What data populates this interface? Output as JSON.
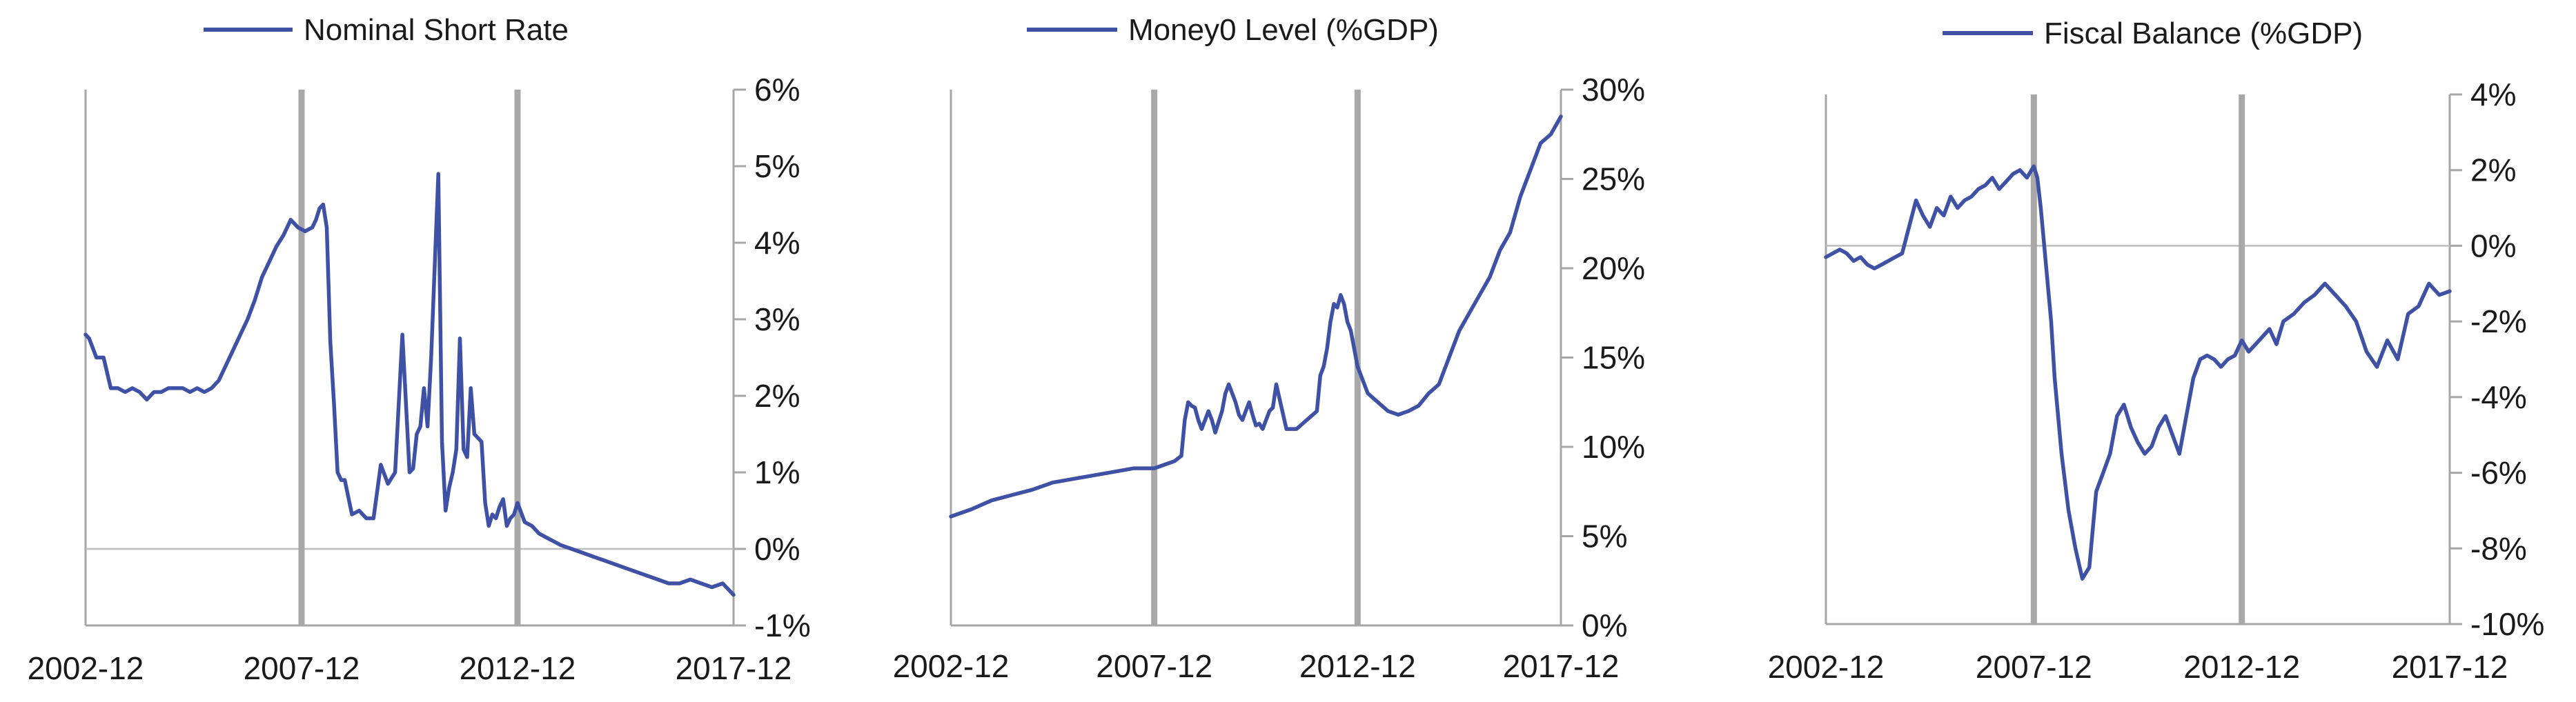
{
  "chart_data": [
    {
      "type": "line",
      "title": "",
      "xlabel": "",
      "ylabel": "",
      "legend_position": "top",
      "x_tick_labels": [
        "2002-12",
        "2007-12",
        "2012-12",
        "2017-12"
      ],
      "y_tick_labels": [
        "6%",
        "5%",
        "4%",
        "3%",
        "2%",
        "1%",
        "0%",
        "-1%"
      ],
      "ylim": [
        -1,
        6
      ],
      "xlim": [
        "2002-12",
        "2017-12"
      ],
      "y_axis_side": "right",
      "vertical_markers": [
        "2007-12",
        "2012-12"
      ],
      "series": [
        {
          "name": "Nominal Short Rate",
          "color": "#3f51a5",
          "x": [
            "2002-12",
            "2003-01",
            "2003-03",
            "2003-05",
            "2003-07",
            "2003-09",
            "2003-11",
            "2004-01",
            "2004-03",
            "2004-05",
            "2004-07",
            "2004-09",
            "2004-11",
            "2005-01",
            "2005-03",
            "2005-05",
            "2005-07",
            "2005-09",
            "2005-11",
            "2006-01",
            "2006-03",
            "2006-05",
            "2006-07",
            "2006-09",
            "2006-11",
            "2007-01",
            "2007-03",
            "2007-05",
            "2007-07",
            "2007-09",
            "2007-11",
            "2008-01",
            "2008-03",
            "2008-04",
            "2008-05",
            "2008-06",
            "2008-07",
            "2008-08",
            "2008-09",
            "2008-10",
            "2008-11",
            "2008-12",
            "2009-02",
            "2009-04",
            "2009-06",
            "2009-08",
            "2009-10",
            "2009-12",
            "2010-02",
            "2010-04",
            "2010-06",
            "2010-07",
            "2010-08",
            "2010-09",
            "2010-10",
            "2010-11",
            "2010-12",
            "2011-02",
            "2011-03",
            "2011-04",
            "2011-05",
            "2011-06",
            "2011-07",
            "2011-08",
            "2011-09",
            "2011-10",
            "2011-11",
            "2011-12",
            "2012-01",
            "2012-02",
            "2012-03",
            "2012-04",
            "2012-05",
            "2012-06",
            "2012-07",
            "2012-08",
            "2012-09",
            "2012-10",
            "2012-11",
            "2012-12",
            "2013-02",
            "2013-04",
            "2013-06",
            "2013-08",
            "2013-10",
            "2013-12",
            "2014-03",
            "2014-06",
            "2014-09",
            "2014-12",
            "2015-03",
            "2015-06",
            "2015-09",
            "2015-12",
            "2016-03",
            "2016-06",
            "2016-09",
            "2016-12",
            "2017-03",
            "2017-06",
            "2017-09",
            "2017-12"
          ],
          "y": [
            2.8,
            2.75,
            2.5,
            2.5,
            2.1,
            2.1,
            2.05,
            2.1,
            2.05,
            1.95,
            2.05,
            2.05,
            2.1,
            2.1,
            2.1,
            2.05,
            2.1,
            2.05,
            2.1,
            2.2,
            2.4,
            2.6,
            2.8,
            3.0,
            3.25,
            3.55,
            3.75,
            3.95,
            4.1,
            4.3,
            4.2,
            4.15,
            4.2,
            4.3,
            4.45,
            4.5,
            4.2,
            2.7,
            1.9,
            1.0,
            0.9,
            0.9,
            0.45,
            0.5,
            0.4,
            0.4,
            1.1,
            0.85,
            1.0,
            2.8,
            1.0,
            1.05,
            1.5,
            1.6,
            2.1,
            1.6,
            2.5,
            4.9,
            1.4,
            0.5,
            0.8,
            1.0,
            1.3,
            2.75,
            1.3,
            1.2,
            2.1,
            1.5,
            1.45,
            1.4,
            0.6,
            0.3,
            0.45,
            0.4,
            0.55,
            0.65,
            0.3,
            0.4,
            0.45,
            0.6,
            0.35,
            0.3,
            0.2,
            0.15,
            0.1,
            0.05,
            0.0,
            -0.05,
            -0.1,
            -0.15,
            -0.2,
            -0.25,
            -0.3,
            -0.35,
            -0.4,
            -0.45,
            -0.45,
            -0.4,
            -0.45,
            -0.5,
            -0.45,
            -0.6
          ]
        }
      ]
    },
    {
      "type": "line",
      "title": "",
      "xlabel": "",
      "ylabel": "",
      "legend_position": "top",
      "x_tick_labels": [
        "2002-12",
        "2007-12",
        "2012-12",
        "2017-12"
      ],
      "y_tick_labels": [
        "30%",
        "25%",
        "20%",
        "15%",
        "10%",
        "5%",
        "0%"
      ],
      "ylim": [
        0,
        30
      ],
      "xlim": [
        "2002-12",
        "2017-12"
      ],
      "y_axis_side": "right",
      "vertical_markers": [
        "2007-12",
        "2012-12"
      ],
      "series": [
        {
          "name": "Money0 Level (%GDP)",
          "color": "#3f51a5",
          "x": [
            "2002-12",
            "2003-06",
            "2003-12",
            "2004-06",
            "2004-12",
            "2005-06",
            "2005-12",
            "2006-06",
            "2006-12",
            "2007-06",
            "2007-12",
            "2008-03",
            "2008-06",
            "2008-08",
            "2008-09",
            "2008-10",
            "2008-11",
            "2008-12",
            "2009-01",
            "2009-02",
            "2009-03",
            "2009-04",
            "2009-05",
            "2009-06",
            "2009-08",
            "2009-09",
            "2009-10",
            "2009-12",
            "2010-01",
            "2010-02",
            "2010-03",
            "2010-04",
            "2010-05",
            "2010-06",
            "2010-07",
            "2010-08",
            "2010-09",
            "2010-10",
            "2010-11",
            "2010-12",
            "2011-03",
            "2011-06",
            "2011-09",
            "2011-12",
            "2012-01",
            "2012-02",
            "2012-03",
            "2012-04",
            "2012-05",
            "2012-06",
            "2012-07",
            "2012-08",
            "2012-09",
            "2012-10",
            "2012-11",
            "2012-12",
            "2013-03",
            "2013-06",
            "2013-09",
            "2013-12",
            "2014-03",
            "2014-06",
            "2014-09",
            "2014-12",
            "2015-03",
            "2015-06",
            "2015-09",
            "2015-12",
            "2016-03",
            "2016-06",
            "2016-09",
            "2016-12",
            "2017-03",
            "2017-06",
            "2017-09",
            "2017-12"
          ],
          "y": [
            6.1,
            6.5,
            7.0,
            7.3,
            7.6,
            8.0,
            8.2,
            8.4,
            8.6,
            8.8,
            8.8,
            9.0,
            9.2,
            9.5,
            11.5,
            12.5,
            12.3,
            12.2,
            11.5,
            11.0,
            11.5,
            12.0,
            11.5,
            10.8,
            12.0,
            13.0,
            13.5,
            12.5,
            11.8,
            11.5,
            12.0,
            12.5,
            11.8,
            11.2,
            11.3,
            11.0,
            11.5,
            12.0,
            12.2,
            13.5,
            11.0,
            11.0,
            11.5,
            12.0,
            14.0,
            14.5,
            15.5,
            17.0,
            18.0,
            17.8,
            18.5,
            18.0,
            17.0,
            16.5,
            15.5,
            14.5,
            13.0,
            12.5,
            12.0,
            11.8,
            12.0,
            12.3,
            13.0,
            13.5,
            15.0,
            16.5,
            17.5,
            18.5,
            19.5,
            21.0,
            22.0,
            24.0,
            25.5,
            27.0,
            27.5,
            28.5
          ]
        }
      ]
    },
    {
      "type": "line",
      "title": "",
      "xlabel": "",
      "ylabel": "",
      "legend_position": "top",
      "x_tick_labels": [
        "2002-12",
        "2007-12",
        "2012-12",
        "2017-12"
      ],
      "y_tick_labels": [
        "4%",
        "2%",
        "0%",
        "-2%",
        "-4%",
        "-6%",
        "-8%",
        "-10%"
      ],
      "ylim": [
        -10,
        4
      ],
      "xlim": [
        "2002-12",
        "2017-12"
      ],
      "y_axis_side": "right",
      "vertical_markers": [
        "2007-12",
        "2012-12"
      ],
      "series": [
        {
          "name": "Fiscal Balance (%GDP)",
          "color": "#3f51a5",
          "x": [
            "2002-12",
            "2003-02",
            "2003-04",
            "2003-06",
            "2003-08",
            "2003-10",
            "2003-12",
            "2004-02",
            "2004-04",
            "2004-06",
            "2004-08",
            "2004-10",
            "2004-12",
            "2005-02",
            "2005-04",
            "2005-06",
            "2005-08",
            "2005-10",
            "2005-12",
            "2006-02",
            "2006-04",
            "2006-06",
            "2006-08",
            "2006-10",
            "2006-12",
            "2007-02",
            "2007-04",
            "2007-06",
            "2007-08",
            "2007-10",
            "2007-12",
            "2008-01",
            "2008-02",
            "2008-03",
            "2008-04",
            "2008-05",
            "2008-06",
            "2008-08",
            "2008-10",
            "2008-12",
            "2009-02",
            "2009-04",
            "2009-06",
            "2009-08",
            "2009-10",
            "2009-12",
            "2010-02",
            "2010-04",
            "2010-06",
            "2010-08",
            "2010-10",
            "2010-12",
            "2011-02",
            "2011-04",
            "2011-06",
            "2011-08",
            "2011-10",
            "2011-12",
            "2012-02",
            "2012-04",
            "2012-06",
            "2012-08",
            "2012-10",
            "2012-12",
            "2013-02",
            "2013-04",
            "2013-06",
            "2013-08",
            "2013-10",
            "2013-12",
            "2014-03",
            "2014-06",
            "2014-09",
            "2014-12",
            "2015-03",
            "2015-06",
            "2015-09",
            "2015-12",
            "2016-03",
            "2016-06",
            "2016-09",
            "2016-12",
            "2017-03",
            "2017-06",
            "2017-09",
            "2017-12"
          ],
          "y": [
            -0.3,
            -0.2,
            -0.1,
            -0.2,
            -0.4,
            -0.3,
            -0.5,
            -0.6,
            -0.5,
            -0.4,
            -0.3,
            -0.2,
            0.5,
            1.2,
            0.8,
            0.5,
            1.0,
            0.8,
            1.3,
            1.0,
            1.2,
            1.3,
            1.5,
            1.6,
            1.8,
            1.5,
            1.7,
            1.9,
            2.0,
            1.8,
            2.1,
            1.8,
            1.0,
            0.0,
            -1.0,
            -2.0,
            -3.5,
            -5.5,
            -7.0,
            -8.0,
            -8.8,
            -8.5,
            -6.5,
            -6.0,
            -5.5,
            -4.5,
            -4.2,
            -4.8,
            -5.2,
            -5.5,
            -5.3,
            -4.8,
            -4.5,
            -5.0,
            -5.5,
            -4.5,
            -3.5,
            -3.0,
            -2.9,
            -3.0,
            -3.2,
            -3.0,
            -2.9,
            -2.5,
            -2.8,
            -2.6,
            -2.4,
            -2.2,
            -2.6,
            -2.0,
            -1.8,
            -1.5,
            -1.3,
            -1.0,
            -1.3,
            -1.6,
            -2.0,
            -2.8,
            -3.2,
            -2.5,
            -3.0,
            -1.8,
            -1.6,
            -1.0,
            -1.3,
            -1.2
          ]
        }
      ]
    }
  ]
}
